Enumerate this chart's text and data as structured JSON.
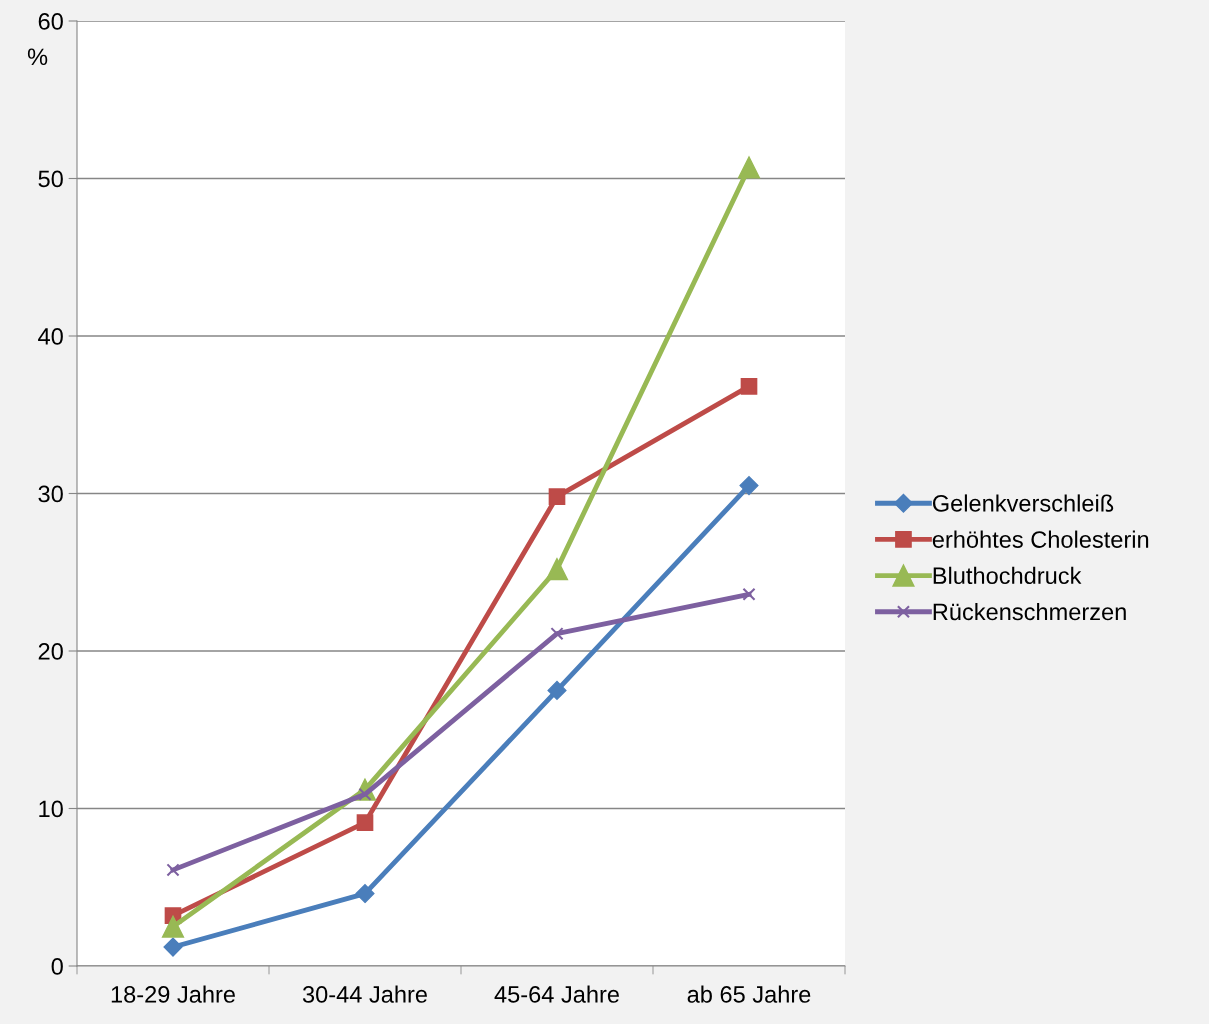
{
  "chart_data": {
    "type": "line",
    "ylabel": "%",
    "categories": [
      "18-29 Jahre",
      "30-44 Jahre",
      "45-64 Jahre",
      "ab 65 Jahre"
    ],
    "series": [
      {
        "name": "Gelenkverschleiß",
        "color": "#4a7ebb",
        "marker": "diamond",
        "values": [
          1.2,
          4.6,
          17.5,
          30.5
        ]
      },
      {
        "name": "erhöhtes Cholesterin",
        "color": "#be4b48",
        "marker": "square",
        "values": [
          3.2,
          9.1,
          29.8,
          36.8
        ]
      },
      {
        "name": "Bluthochdruck",
        "color": "#98b954",
        "marker": "triangle",
        "values": [
          2.5,
          11.2,
          25.2,
          50.7
        ]
      },
      {
        "name": "Rückenschmerzen",
        "color": "#7d60a0",
        "marker": "cross",
        "values": [
          6.1,
          10.9,
          21.1,
          23.6
        ]
      }
    ],
    "ylim": [
      0,
      60
    ],
    "yticks": [
      0,
      10,
      20,
      30,
      40,
      50,
      60
    ],
    "grid": "y",
    "legend": "right",
    "line_style": "solid"
  }
}
